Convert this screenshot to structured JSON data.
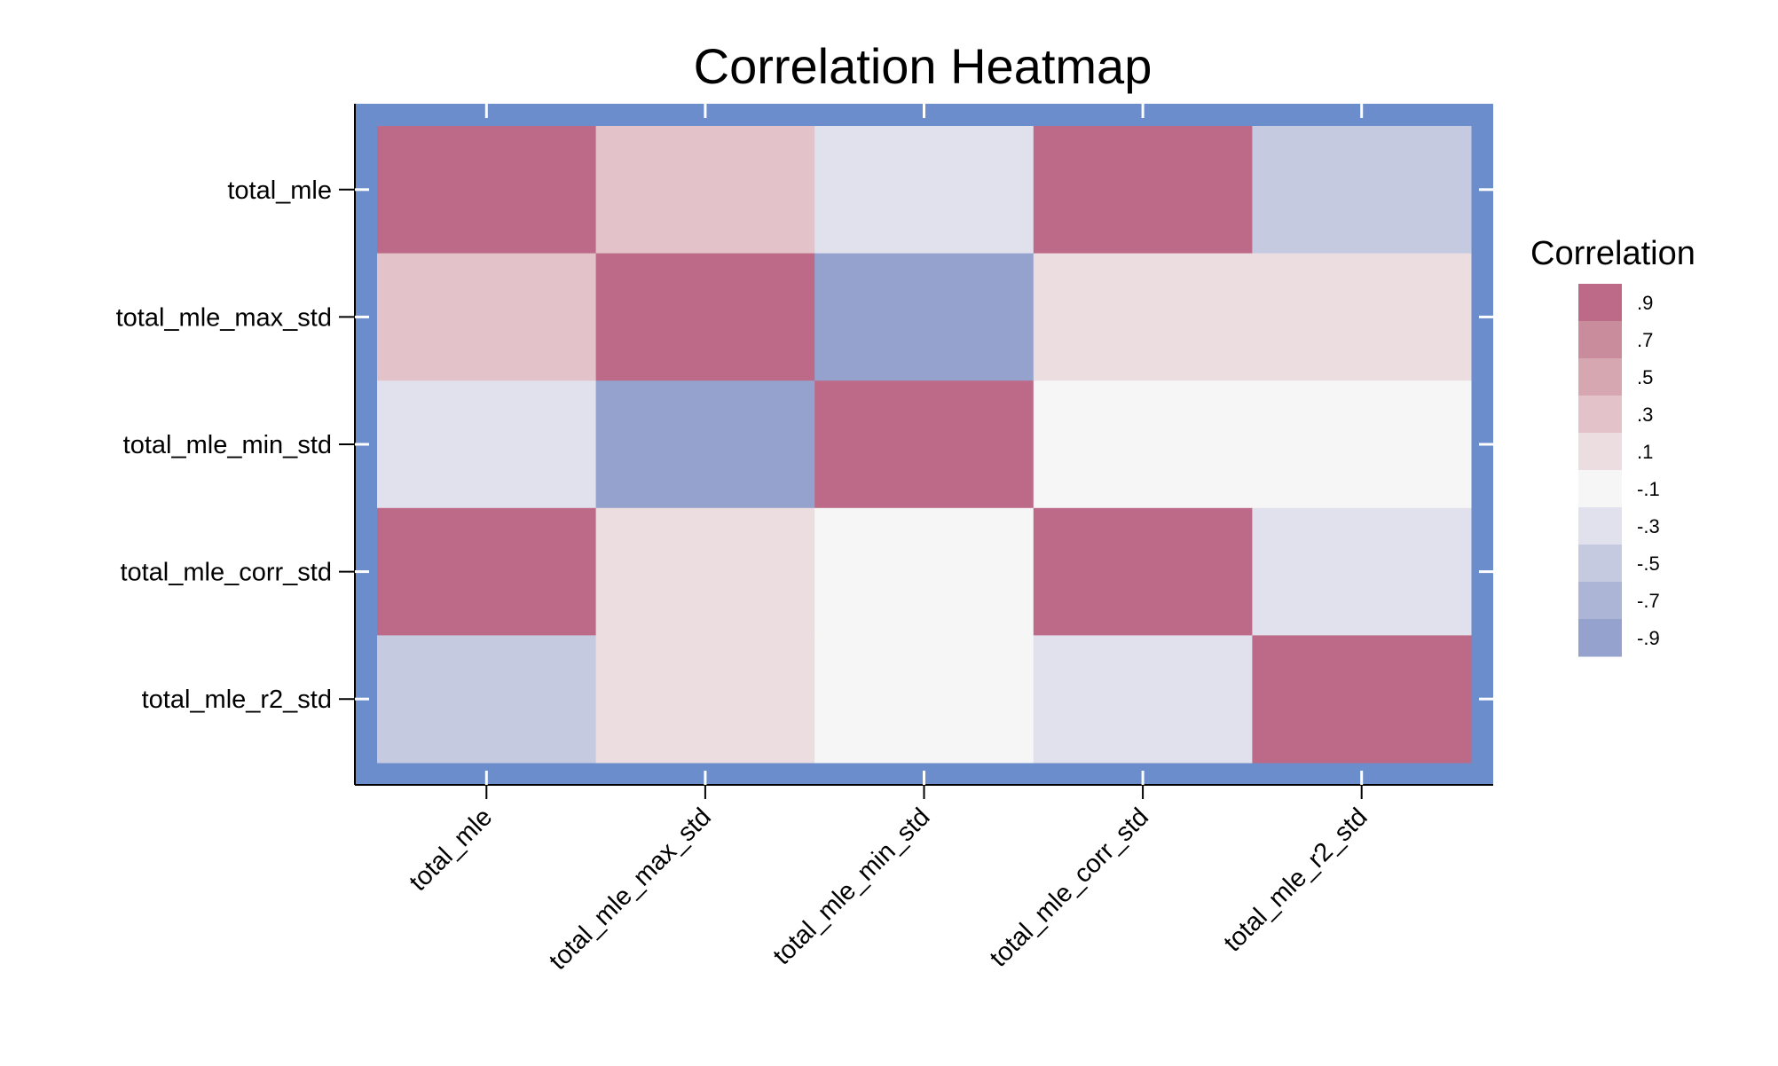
{
  "chart_data": {
    "type": "heatmap",
    "title": "Correlation Heatmap",
    "x_categories": [
      "total_mle",
      "total_mle_max_std",
      "total_mle_min_std",
      "total_mle_corr_std",
      "total_mle_r2_std"
    ],
    "y_categories": [
      "total_mle",
      "total_mle_max_std",
      "total_mle_min_std",
      "total_mle_corr_std",
      "total_mle_r2_std"
    ],
    "values": [
      [
        1.0,
        0.3,
        -0.3,
        1.0,
        -0.5
      ],
      [
        0.3,
        1.0,
        -0.9,
        0.1,
        0.1
      ],
      [
        -0.3,
        -0.9,
        1.0,
        -0.1,
        -0.1
      ],
      [
        1.0,
        0.1,
        -0.1,
        1.0,
        -0.3
      ],
      [
        -0.5,
        0.1,
        -0.1,
        -0.3,
        1.0
      ]
    ],
    "legend": {
      "title": "Correlation",
      "position": "right",
      "bins": [
        {
          "label": ".9",
          "color": "#bc6a87"
        },
        {
          "label": ".7",
          "color": "#c88c9c"
        },
        {
          "label": ".5",
          "color": "#d6a7b1"
        },
        {
          "label": ".3",
          "color": "#e3c3c9"
        },
        {
          "label": ".1",
          "color": "#ecdde1"
        },
        {
          "label": "-.1",
          "color": "#f6f6f6"
        },
        {
          "label": "-.3",
          "color": "#e0e1ec"
        },
        {
          "label": "-.5",
          "color": "#c5cae0"
        },
        {
          "label": "-.7",
          "color": "#adb5d7"
        },
        {
          "label": "-.9",
          "color": "#95a2cd"
        }
      ]
    },
    "plot_background_color": "#6b8dcb",
    "x_tick_label_rotation_deg": -45
  }
}
